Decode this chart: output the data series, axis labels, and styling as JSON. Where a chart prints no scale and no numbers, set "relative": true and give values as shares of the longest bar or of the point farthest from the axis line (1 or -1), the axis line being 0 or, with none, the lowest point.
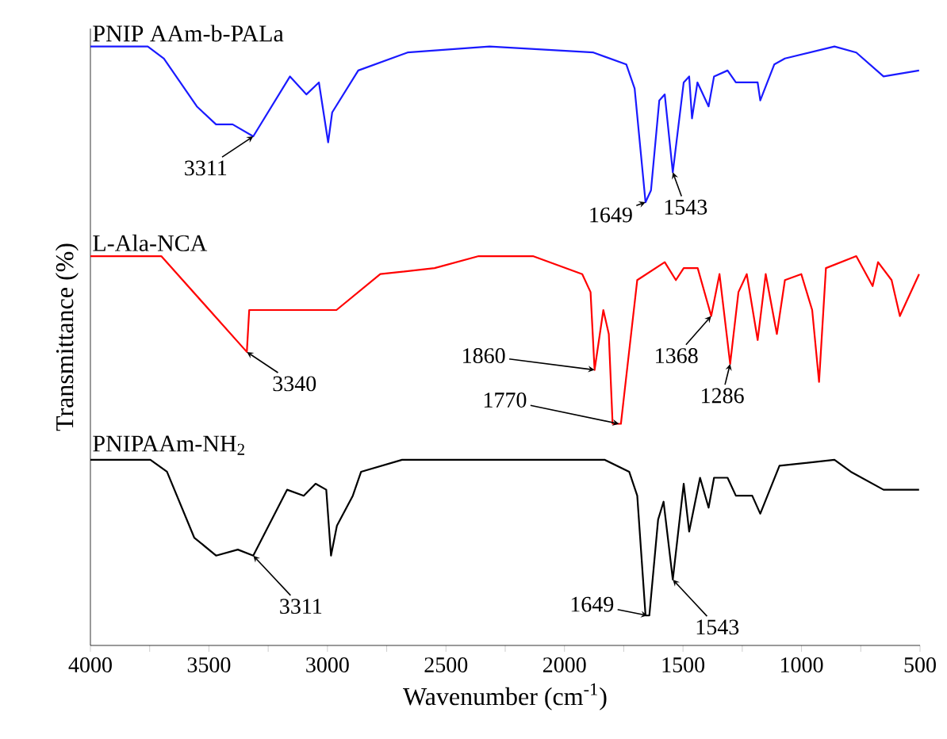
{
  "chart_data": {
    "type": "line",
    "relative": true,
    "xlabel": "Wavenumber (cm$^{-1}$)",
    "ylabel": "Transmittance (%)",
    "xlim": [
      4000,
      500
    ],
    "xticks": [
      4000,
      {
        "value": 3750,
        "label": null
      },
      3500,
      {
        "value": 3250,
        "label": null
      },
      3000,
      {
        "value": 2750,
        "label": null
      },
      2500,
      {
        "value": 2250,
        "label": null
      },
      2000,
      {
        "value": 1750,
        "label": null
      },
      1500,
      {
        "value": 1250,
        "label": null
      },
      1000,
      {
        "value": 750,
        "label": null
      },
      500
    ],
    "series": [
      {
        "name": "PNIP AAm-b-PALa",
        "color": "#1a1aff",
        "x": [
          4000,
          3758,
          3690,
          3551,
          3470,
          3400,
          3313,
          3158,
          3089,
          3036,
          2997,
          2980,
          2870,
          2662,
          2316,
          1878,
          1739,
          1704,
          1658,
          1635,
          1600,
          1577,
          1543,
          1497,
          1474,
          1462,
          1439,
          1392,
          1369,
          1312,
          1277,
          1185,
          1174,
          1115,
          1070,
          861,
          769,
          654,
          504
        ],
        "values": [
          1.0,
          1.0,
          0.98,
          0.9,
          0.87,
          0.87,
          0.85,
          0.95,
          0.92,
          0.94,
          0.84,
          0.89,
          0.96,
          0.99,
          1.0,
          0.99,
          0.97,
          0.93,
          0.74,
          0.76,
          0.91,
          0.92,
          0.79,
          0.94,
          0.95,
          0.88,
          0.94,
          0.9,
          0.95,
          0.96,
          0.94,
          0.94,
          0.91,
          0.97,
          0.98,
          1.0,
          0.99,
          0.95,
          0.96
        ]
      },
      {
        "name": "L-Ala-NCA",
        "color": "#ff0000",
        "x": [
          4000,
          3701,
          3340,
          3330,
          3309,
          2962,
          2777,
          2548,
          2362,
          2133,
          1925,
          1890,
          1873,
          1836,
          1813,
          1797,
          1762,
          1693,
          1577,
          1530,
          1497,
          1438,
          1381,
          1346,
          1301,
          1266,
          1231,
          1185,
          1151,
          1104,
          1070,
          1001,
          955,
          926,
          897,
          769,
          700,
          677,
          620,
          585,
          504
        ],
        "values": [
          0.65,
          0.65,
          0.49,
          0.56,
          0.56,
          0.56,
          0.62,
          0.63,
          0.65,
          0.65,
          0.62,
          0.59,
          0.46,
          0.56,
          0.52,
          0.37,
          0.37,
          0.61,
          0.64,
          0.61,
          0.63,
          0.63,
          0.55,
          0.62,
          0.47,
          0.59,
          0.62,
          0.51,
          0.62,
          0.52,
          0.61,
          0.62,
          0.56,
          0.44,
          0.63,
          0.65,
          0.6,
          0.64,
          0.61,
          0.55,
          0.62
        ]
      },
      {
        "name": "PNIPAAm-NH$_{2}$",
        "color": "#000000",
        "x": [
          4000,
          3747,
          3677,
          3562,
          3470,
          3378,
          3313,
          3170,
          3100,
          3050,
          3005,
          2985,
          2960,
          2893,
          2858,
          2685,
          2200,
          1831,
          1727,
          1693,
          1658,
          1642,
          1605,
          1582,
          1543,
          1497,
          1474,
          1428,
          1392,
          1369,
          1312,
          1277,
          1208,
          1174,
          1093,
          861,
          792,
          654,
          504
        ],
        "values": [
          0.31,
          0.31,
          0.29,
          0.18,
          0.15,
          0.16,
          0.15,
          0.26,
          0.25,
          0.27,
          0.26,
          0.15,
          0.2,
          0.25,
          0.29,
          0.31,
          0.31,
          0.31,
          0.29,
          0.25,
          0.05,
          0.05,
          0.21,
          0.24,
          0.11,
          0.27,
          0.19,
          0.28,
          0.23,
          0.28,
          0.28,
          0.25,
          0.25,
          0.22,
          0.3,
          0.31,
          0.29,
          0.26,
          0.26
        ]
      }
    ],
    "annotations": [
      {
        "text": "3311",
        "x": 3313,
        "y": 0.85
      },
      {
        "text": "1649",
        "x": 1658,
        "y": 0.74
      },
      {
        "text": "1543",
        "x": 1543,
        "y": 0.79
      },
      {
        "text": "3340",
        "x": 3340,
        "y": 0.49
      },
      {
        "text": "1860",
        "x": 1873,
        "y": 0.46
      },
      {
        "text": "1770",
        "x": 1770,
        "y": 0.37
      },
      {
        "text": "1368",
        "x": 1381,
        "y": 0.55
      },
      {
        "text": "1286",
        "x": 1301,
        "y": 0.47
      },
      {
        "text": "3311",
        "x": 3313,
        "y": 0.15
      },
      {
        "text": "1649",
        "x": 1650,
        "y": 0.05
      },
      {
        "text": "1543",
        "x": 1543,
        "y": 0.11
      }
    ]
  }
}
